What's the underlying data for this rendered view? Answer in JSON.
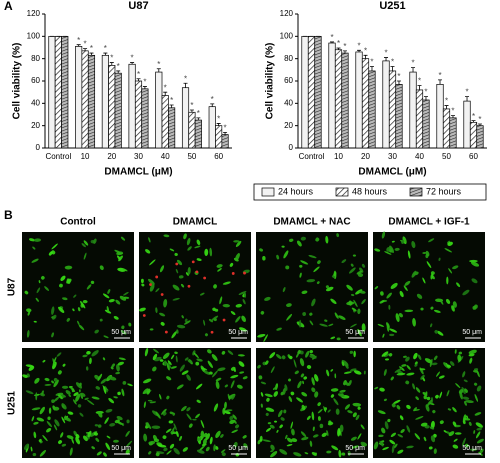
{
  "figure_labels": {
    "a": "A",
    "b": "B"
  },
  "chart_data": [
    {
      "type": "bar",
      "title": "U87",
      "xlabel": "DMAMCL (μM)",
      "ylabel": "Cell viability (%)",
      "categories": [
        "Control",
        "10",
        "20",
        "30",
        "40",
        "50",
        "60"
      ],
      "series": [
        {
          "name": "24 hours",
          "color": "#f2f2f2",
          "pattern": "none",
          "values": [
            100,
            91,
            83,
            75,
            68,
            54,
            37
          ],
          "errors": [
            0,
            1.5,
            2,
            1.5,
            3,
            4,
            2.5
          ]
        },
        {
          "name": "48 hours",
          "color": "#ffffff",
          "pattern": "diagonal",
          "values": [
            100,
            87,
            74,
            60,
            47,
            32,
            20
          ],
          "errors": [
            0,
            2,
            2.5,
            2,
            3,
            2,
            2
          ]
        },
        {
          "name": "72 hours",
          "color": "#9a9a9a",
          "pattern": "horizontal",
          "values": [
            100,
            83,
            67,
            53,
            36,
            25,
            12
          ],
          "errors": [
            0,
            2,
            2,
            2,
            2.5,
            2,
            2
          ]
        }
      ],
      "significance_marker": "*",
      "ylim": [
        0,
        120
      ],
      "yticks": [
        0,
        20,
        40,
        60,
        80,
        100,
        120
      ]
    },
    {
      "type": "bar",
      "title": "U251",
      "xlabel": "DMAMCL (μM)",
      "ylabel": "Cell viability (%)",
      "categories": [
        "Control",
        "10",
        "20",
        "30",
        "40",
        "50",
        "60"
      ],
      "series": [
        {
          "name": "24 hours",
          "color": "#f2f2f2",
          "pattern": "none",
          "values": [
            100,
            94,
            86,
            78,
            68,
            57,
            42
          ],
          "errors": [
            0,
            1,
            1.5,
            3,
            4,
            4,
            4
          ]
        },
        {
          "name": "48 hours",
          "color": "#ffffff",
          "pattern": "diagonal",
          "values": [
            100,
            88,
            80,
            69,
            52,
            35,
            23
          ],
          "errors": [
            0,
            1.5,
            3,
            4,
            4,
            3,
            1.5
          ]
        },
        {
          "name": "72 hours",
          "color": "#9a9a9a",
          "pattern": "horizontal",
          "values": [
            100,
            85,
            69,
            57,
            43,
            27,
            20
          ],
          "errors": [
            0,
            2,
            4,
            3,
            3,
            2,
            1.5
          ]
        }
      ],
      "significance_marker": "*",
      "ylim": [
        0,
        120
      ],
      "yticks": [
        0,
        20,
        40,
        60,
        80,
        100,
        120
      ]
    }
  ],
  "panel_b": {
    "columns": [
      "Control",
      "DMAMCL",
      "DMAMCL + NAC",
      "DMAMCL + IGF-1"
    ],
    "rows": [
      "U87",
      "U251"
    ],
    "scale_bar": "50 μm"
  }
}
